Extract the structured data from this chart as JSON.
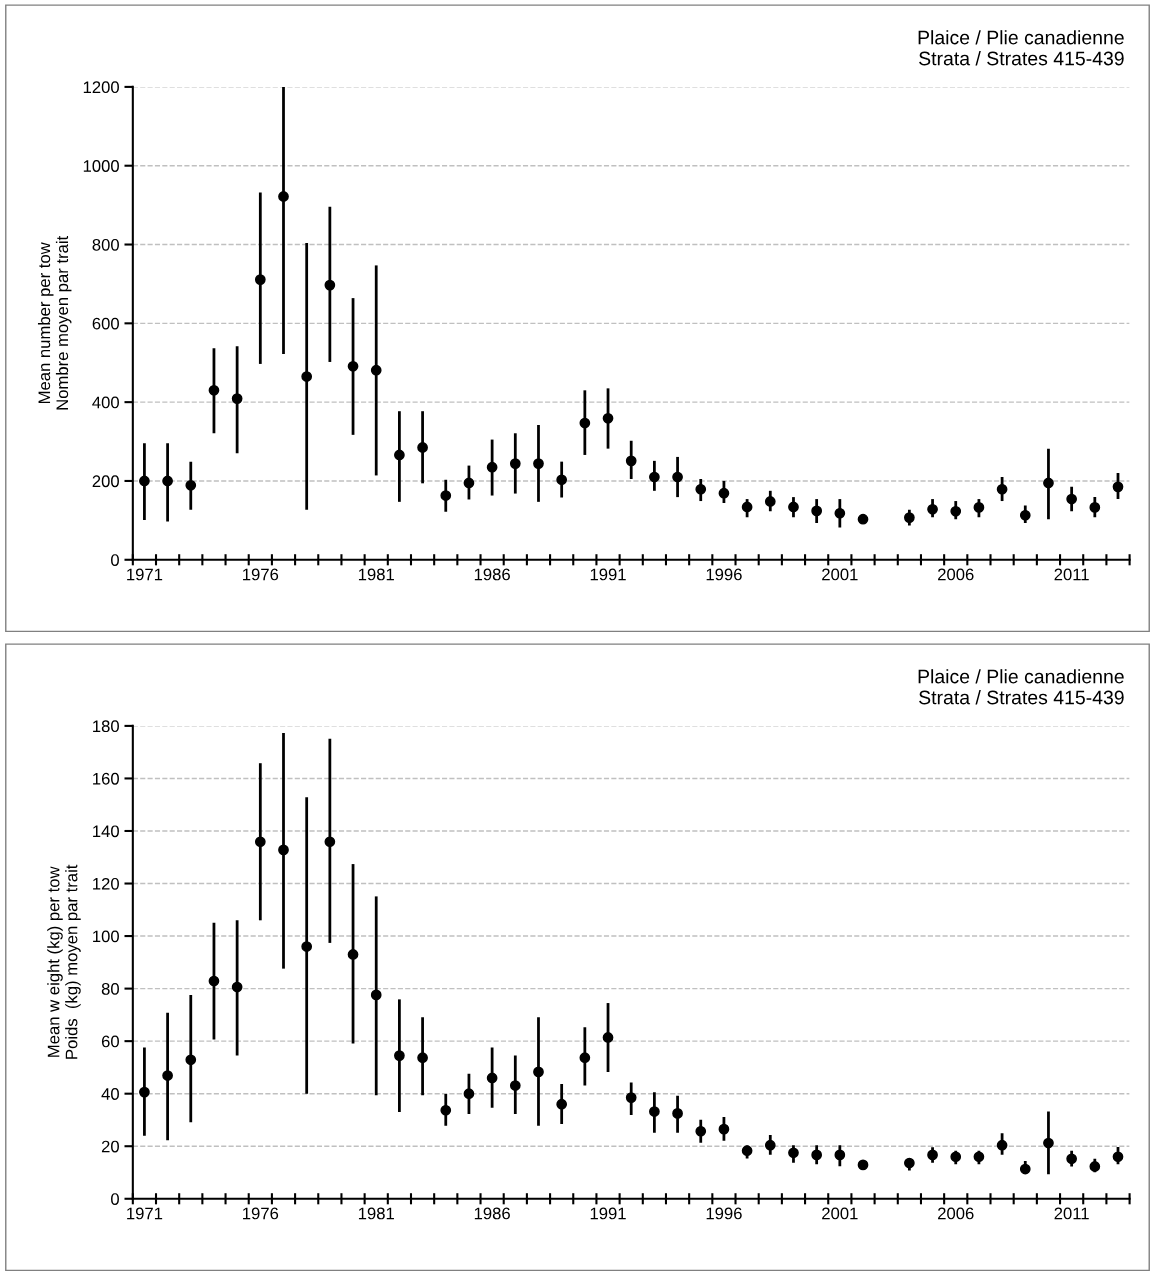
{
  "chart_data": [
    {
      "type": "scatter",
      "title": "Plaice / Plie canadienne",
      "subtitle": "Strata / Strates 415-439",
      "ylabel": "Mean number per tow\nNombre moyen par trait",
      "categories": [
        "1971",
        null,
        null,
        null,
        null,
        "1976",
        null,
        null,
        null,
        null,
        "1981",
        null,
        null,
        null,
        null,
        "1986",
        null,
        null,
        null,
        null,
        "1991",
        null,
        null,
        null,
        null,
        "1996",
        null,
        null,
        null,
        null,
        "2001",
        null,
        null,
        null,
        null,
        "2006",
        null,
        null,
        null,
        null,
        "2011",
        null,
        null
      ],
      "values": [
        200,
        200,
        189,
        430,
        409,
        711,
        922,
        465,
        697,
        491,
        481,
        266,
        285,
        163,
        195,
        235,
        244,
        244,
        203,
        347,
        359,
        251,
        210,
        210,
        179,
        169,
        134,
        148,
        134,
        124,
        118,
        103,
        null,
        107,
        128,
        123,
        133,
        179,
        113,
        195,
        154,
        133,
        185
      ],
      "errors": [
        [
          101,
          296
        ],
        [
          97,
          296
        ],
        [
          127,
          249
        ],
        [
          321,
          537
        ],
        [
          270,
          542
        ],
        [
          497,
          932
        ],
        [
          522,
          1200
        ],
        [
          127,
          804
        ],
        [
          502,
          896
        ],
        [
          317,
          664
        ],
        [
          214,
          747
        ],
        [
          147,
          377
        ],
        [
          194,
          377
        ],
        [
          122,
          203
        ],
        [
          153,
          239
        ],
        [
          163,
          305
        ],
        [
          168,
          321
        ],
        [
          147,
          342
        ],
        [
          158,
          249
        ],
        [
          266,
          430
        ],
        [
          282,
          435
        ],
        [
          205,
          302
        ],
        [
          175,
          251
        ],
        [
          159,
          261
        ],
        [
          149,
          205
        ],
        [
          144,
          200
        ],
        [
          108,
          154
        ],
        [
          123,
          175
        ],
        [
          108,
          159
        ],
        [
          93,
          154
        ],
        [
          82,
          154
        ],
        [
          95,
          114
        ],
        null,
        [
          87,
          127
        ],
        [
          108,
          154
        ],
        [
          103,
          149
        ],
        [
          108,
          154
        ],
        [
          149,
          210
        ],
        [
          93,
          138
        ],
        [
          103,
          282
        ],
        [
          123,
          185
        ],
        [
          108,
          159
        ],
        [
          154,
          220
        ]
      ],
      "color": "#000000",
      "marker": "circle",
      "grid": "y",
      "ylim": [
        0,
        1200
      ],
      "yticks": [
        0,
        200,
        400,
        600,
        800,
        1000,
        1200
      ]
    },
    {
      "type": "scatter",
      "title": "Plaice / Plie canadienne",
      "subtitle": "Strata / Strates 415-439",
      "ylabel": "Mean w eight (kg) per tow\nPoids  (kg) moyen par trait",
      "categories": [
        "1971",
        null,
        null,
        null,
        null,
        "1976",
        null,
        null,
        null,
        null,
        "1981",
        null,
        null,
        null,
        null,
        "1986",
        null,
        null,
        null,
        null,
        "1991",
        null,
        null,
        null,
        null,
        "1996",
        null,
        null,
        null,
        null,
        "2001",
        null,
        null,
        null,
        null,
        "2006",
        null,
        null,
        null,
        null,
        "2011",
        null,
        null
      ],
      "values": [
        40.6,
        46.9,
        52.9,
        82.9,
        80.6,
        135.9,
        132.8,
        96,
        135.9,
        93,
        77.6,
        54.5,
        53.7,
        33.7,
        40,
        46,
        43.1,
        48.3,
        36,
        53.7,
        61.4,
        38.5,
        33.2,
        32.5,
        25.7,
        26.5,
        18.3,
        20.4,
        17.5,
        16.7,
        16.7,
        12.9,
        null,
        13.6,
        16.7,
        16,
        16,
        20.4,
        11.3,
        21.2,
        15.2,
        12.3,
        16
      ],
      "errors": [
        [
          24,
          57.6
        ],
        [
          22.3,
          70.8
        ],
        [
          29.1,
          77.6
        ],
        [
          60.6,
          105.1
        ],
        [
          54.5,
          106
        ],
        [
          106,
          165.8
        ],
        [
          87.6,
          177.3
        ],
        [
          40,
          152.8
        ],
        [
          97.4,
          175.1
        ],
        [
          59.1,
          127.4
        ],
        [
          39.4,
          115.1
        ],
        [
          33,
          75.9
        ],
        [
          39.4,
          69.1
        ],
        [
          27.8,
          39.9
        ],
        [
          32.3,
          47.6
        ],
        [
          34.6,
          57.6
        ],
        [
          32.3,
          54.5
        ],
        [
          27.8,
          69.1
        ],
        [
          28.5,
          43.7
        ],
        [
          43.1,
          65.3
        ],
        [
          48.3,
          74.5
        ],
        [
          31.9,
          44.3
        ],
        [
          25.1,
          40.5
        ],
        [
          25.1,
          39.2
        ],
        [
          21.3,
          30.1
        ],
        [
          22.1,
          31.1
        ],
        [
          15.3,
          20.3
        ],
        [
          16.8,
          24.3
        ],
        [
          13.7,
          20.4
        ],
        [
          13.1,
          20.4
        ],
        [
          12.4,
          20.4
        ],
        [
          12.4,
          13.7
        ],
        null,
        [
          10.8,
          15.5
        ],
        [
          13.7,
          19.6
        ],
        [
          13.1,
          18.3
        ],
        [
          13.1,
          18.3
        ],
        [
          16.8,
          24.9
        ],
        [
          9.5,
          14.4
        ],
        [
          9.3,
          33.2
        ],
        [
          12.3,
          18.3
        ],
        [
          10.1,
          15.2
        ],
        [
          13.1,
          19.7
        ]
      ],
      "color": "#000000",
      "marker": "circle",
      "grid": "y",
      "ylim": [
        0,
        180
      ],
      "yticks": [
        0,
        20,
        40,
        60,
        80,
        100,
        120,
        140,
        160,
        180
      ]
    }
  ]
}
